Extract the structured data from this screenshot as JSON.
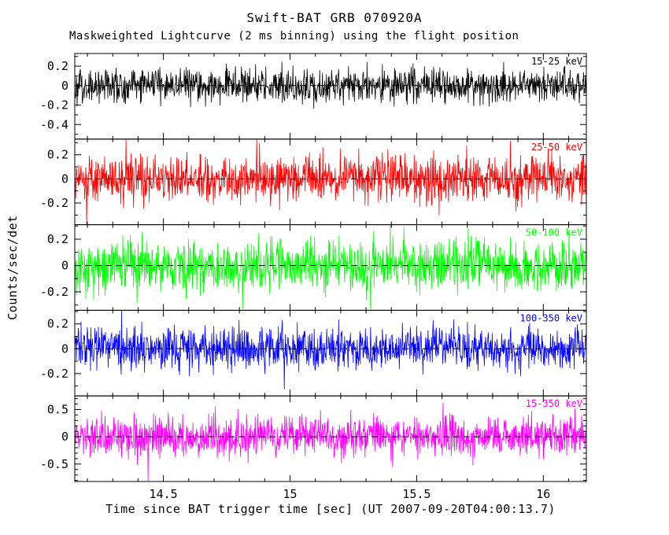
{
  "chart_data": {
    "type": "line",
    "title": "Swift-BAT GRB 070920A",
    "subtitle": "Maskweighted Lightcurve (2 ms binning) using the flight position",
    "xlabel": "Time since BAT trigger time [sec] (UT 2007-09-20T04:00:13.7)",
    "ylabel": "Counts/sec/det",
    "x_range": [
      14.15,
      16.17
    ],
    "x_ticks": [
      14.5,
      15,
      15.5,
      16
    ],
    "x_tick_labels": [
      "14.5",
      "15",
      "15.5",
      "16"
    ],
    "x_minor_step": 0.1,
    "y_minor_step": 0.1,
    "n_points": 1300,
    "grid": false,
    "background": "#ffffff",
    "frame_color": "#000000",
    "baseline_style": "dashed",
    "panels": [
      {
        "band": "15-25 keV",
        "color": "#000000",
        "ylim": [
          -0.55,
          0.33
        ],
        "yticks": [
          0.2,
          0,
          -0.2,
          -0.4
        ],
        "ytick_labels": [
          "0.2",
          "0",
          "-0.2",
          "-0.4"
        ],
        "baseline": 0,
        "noise_sigma": 0.085
      },
      {
        "band": "25-50 keV",
        "color": "#ff0000",
        "ylim": [
          -0.38,
          0.33
        ],
        "yticks": [
          0.2,
          0,
          -0.2
        ],
        "ytick_labels": [
          "0.2",
          "0",
          "-0.2"
        ],
        "baseline": 0,
        "noise_sigma": 0.095
      },
      {
        "band": "50-100 keV",
        "color": "#00ff00",
        "ylim": [
          -0.34,
          0.31
        ],
        "yticks": [
          0.2,
          0,
          -0.2
        ],
        "ytick_labels": [
          "0.2",
          "0",
          "-0.2"
        ],
        "baseline": 0,
        "noise_sigma": 0.095
      },
      {
        "band": "100-350 keV",
        "color": "#0000ff",
        "ylim": [
          -0.38,
          0.31
        ],
        "yticks": [
          0.2,
          0,
          -0.2
        ],
        "ytick_labels": [
          "0.2",
          "0",
          "-0.2"
        ],
        "baseline": 0,
        "noise_sigma": 0.085
      },
      {
        "band": "15-350 keV",
        "color": "#ff00ff",
        "ylim": [
          -0.82,
          0.75
        ],
        "yticks": [
          0.5,
          0,
          -0.5
        ],
        "ytick_labels": [
          "0.5",
          "0",
          "-0.5"
        ],
        "baseline": 0,
        "noise_sigma": 0.19
      }
    ]
  }
}
